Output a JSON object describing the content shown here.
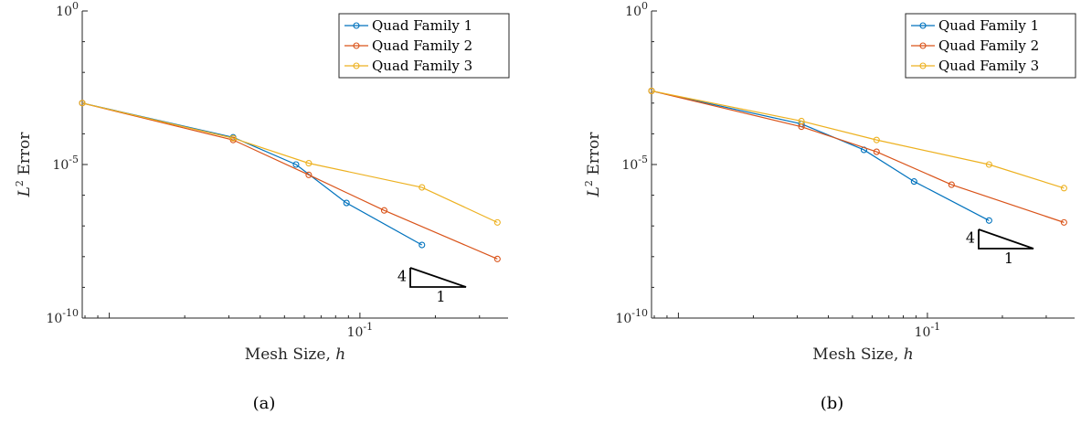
{
  "chart_data": [
    {
      "type": "line",
      "caption": "(a)",
      "xlabel": "Mesh Size, h",
      "ylabel": "L2 Error",
      "xscale": "log",
      "yscale": "log",
      "xlim": [
        0.0078,
        0.39
      ],
      "ylim": [
        1e-10,
        1
      ],
      "ytick_labels": [
        "10^0",
        "10^-5",
        "10^-10"
      ],
      "xtick_labels": [
        "10^-1"
      ],
      "legend_position": "top-right",
      "slope_triangle": {
        "rise": "4",
        "run": "1"
      },
      "series": [
        {
          "name": "Quad Family 1",
          "color": "#0072BD",
          "x": [
            0.0078,
            0.0312,
            0.0556,
            0.0884,
            0.1768
          ],
          "y": [
            0.001,
            7.7e-05,
            1e-05,
            5.6e-07,
            2.4e-08
          ]
        },
        {
          "name": "Quad Family 2",
          "color": "#D95319",
          "x": [
            0.0078,
            0.0312,
            0.0625,
            0.125,
            0.3536
          ],
          "y": [
            0.001,
            6.3e-05,
            4.6e-06,
            3.2e-07,
            8.4e-09
          ]
        },
        {
          "name": "Quad Family 3",
          "color": "#EDB120",
          "x": [
            0.0078,
            0.0312,
            0.0625,
            0.1768,
            0.3536
          ],
          "y": [
            0.001,
            7.2e-05,
            1.1e-05,
            1.8e-06,
            1.3e-07
          ]
        }
      ]
    },
    {
      "type": "line",
      "caption": "(b)",
      "xlabel": "Mesh Size, h",
      "ylabel": "L2 Error",
      "xscale": "log",
      "yscale": "log",
      "xlim": [
        0.0078,
        0.39
      ],
      "ylim": [
        1e-10,
        1
      ],
      "ytick_labels": [
        "10^0",
        "10^-5",
        "10^-10"
      ],
      "xtick_labels": [
        "10^-1"
      ],
      "legend_position": "top-right",
      "slope_triangle": {
        "rise": "4",
        "run": "1"
      },
      "series": [
        {
          "name": "Quad Family 1",
          "color": "#0072BD",
          "x": [
            0.0078,
            0.0312,
            0.0556,
            0.0884,
            0.1768
          ],
          "y": [
            0.0025,
            0.00021,
            3e-05,
            2.8e-06,
            1.5e-07
          ]
        },
        {
          "name": "Quad Family 2",
          "color": "#D95319",
          "x": [
            0.0078,
            0.0312,
            0.0625,
            0.125,
            0.3536
          ],
          "y": [
            0.0025,
            0.00017,
            2.6e-05,
            2.2e-06,
            1.3e-07
          ]
        },
        {
          "name": "Quad Family 3",
          "color": "#EDB120",
          "x": [
            0.0078,
            0.0312,
            0.0625,
            0.1768,
            0.3536
          ],
          "y": [
            0.0025,
            0.00026,
            6.3e-05,
            1e-05,
            1.7e-06
          ]
        }
      ]
    }
  ]
}
